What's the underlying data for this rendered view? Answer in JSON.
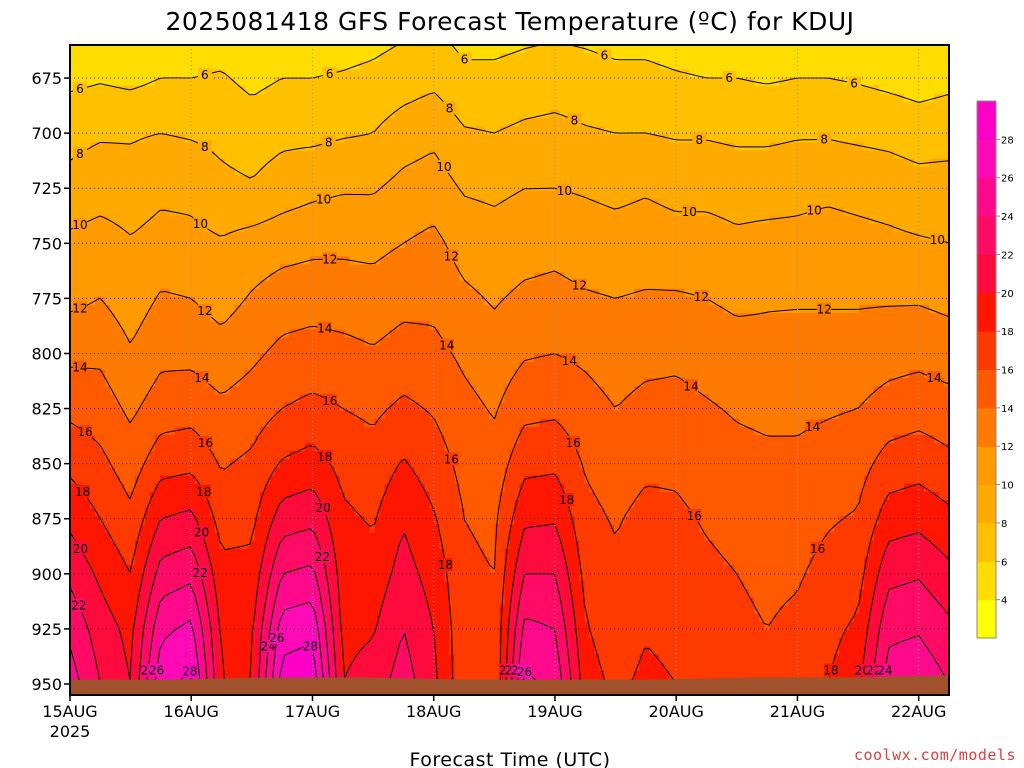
{
  "chart_data": {
    "type": "heatmap",
    "title": "2025081418 GFS Forecast Temperature (ºC) for KDUJ",
    "xlabel": "Forecast Time (UTC)",
    "ylabel": "",
    "credit": "coolwx.com/models",
    "x_ticks": [
      "15AUG",
      "16AUG",
      "17AUG",
      "18AUG",
      "19AUG",
      "20AUG",
      "21AUG",
      "22AUG"
    ],
    "x_tick_sub": "2025",
    "y_ticks": [
      675,
      700,
      725,
      750,
      775,
      800,
      825,
      850,
      875,
      900,
      925,
      950
    ],
    "ylim": [
      955,
      660
    ],
    "xlim_days": [
      15.0,
      22.25
    ],
    "grid": true,
    "colorbar": {
      "levels": [
        4,
        6,
        8,
        10,
        12,
        14,
        16,
        18,
        20,
        22,
        24,
        26,
        28
      ],
      "colors": [
        "#ffff00",
        "#ffdd00",
        "#ffc000",
        "#ffaa00",
        "#ff9a00",
        "#ff7a00",
        "#ff5a00",
        "#ff3a00",
        "#ff1600",
        "#ff0a3c",
        "#ff0a64",
        "#ff0a8c",
        "#ff0ab4",
        "#ff00c8"
      ]
    },
    "profiles": [
      {
        "day": 15.0,
        "temps": [
          5.5,
          7.5,
          8.5,
          10.5,
          11.5,
          13.5,
          15.5,
          17.5,
          19.5,
          21.5,
          23.5,
          25.0
        ]
      },
      {
        "day": 15.25,
        "temps": [
          5.8,
          7.8,
          9.0,
          11.0,
          12.0,
          13.6,
          15.0,
          16.5,
          18.0,
          19.6,
          21.0,
          22.0
        ]
      },
      {
        "day": 15.5,
        "temps": [
          5.5,
          7.8,
          8.8,
          10.2,
          11.0,
          12.2,
          13.6,
          15.0,
          16.5,
          18.0,
          19.4,
          20.0
        ]
      },
      {
        "day": 15.75,
        "temps": [
          6.0,
          8.0,
          9.5,
          10.8,
          12.2,
          13.5,
          15.0,
          17.2,
          20.0,
          22.8,
          25.5,
          27.5
        ]
      },
      {
        "day": 16.0,
        "temps": [
          6.0,
          7.8,
          9.4,
          10.6,
          12.0,
          13.5,
          15.2,
          17.5,
          20.5,
          23.5,
          26.5,
          28.5
        ]
      },
      {
        "day": 16.25,
        "temps": [
          6.2,
          7.5,
          8.5,
          10.2,
          11.2,
          12.8,
          14.4,
          15.8,
          17.2,
          18.6,
          19.6,
          20.0
        ]
      },
      {
        "day": 16.5,
        "temps": [
          5.5,
          7.0,
          8.2,
          10.8,
          12.2,
          13.6,
          15.0,
          16.4,
          17.5,
          18.6,
          19.6,
          20.0
        ]
      },
      {
        "day": 16.75,
        "temps": [
          6.0,
          7.5,
          9.0,
          11.2,
          13.0,
          14.5,
          16.0,
          18.2,
          21.0,
          24.0,
          27.0,
          29.0
        ]
      },
      {
        "day": 17.0,
        "temps": [
          6.0,
          7.5,
          9.5,
          11.5,
          13.2,
          14.8,
          16.5,
          18.8,
          21.5,
          24.5,
          27.5,
          29.5
        ]
      },
      {
        "day": 17.25,
        "temps": [
          6.2,
          7.8,
          9.8,
          11.6,
          13.0,
          14.6,
          16.0,
          17.4,
          18.4,
          19.0,
          19.4,
          20.0
        ]
      },
      {
        "day": 17.5,
        "temps": [
          6.5,
          8.0,
          9.8,
          11.5,
          12.8,
          14.2,
          15.6,
          16.8,
          17.8,
          18.8,
          19.8,
          21.0
        ]
      },
      {
        "day": 17.75,
        "temps": [
          7.0,
          9.0,
          10.6,
          12.0,
          13.4,
          14.8,
          16.4,
          18.2,
          19.8,
          20.8,
          22.0,
          23.0
        ]
      },
      {
        "day": 18.0,
        "temps": [
          7.5,
          9.5,
          11.0,
          12.5,
          13.4,
          14.6,
          15.8,
          17.0,
          18.2,
          19.2,
          20.0,
          20.5
        ]
      },
      {
        "day": 18.25,
        "temps": [
          6.5,
          8.2,
          9.8,
          11.2,
          12.4,
          13.6,
          14.6,
          15.4,
          16.0,
          16.4,
          16.6,
          16.5
        ]
      },
      {
        "day": 18.5,
        "temps": [
          6.5,
          8.0,
          9.6,
          10.8,
          11.8,
          12.8,
          13.8,
          14.8,
          15.6,
          16.0,
          16.2,
          16.0
        ]
      },
      {
        "day": 18.75,
        "temps": [
          6.8,
          8.4,
          10.0,
          11.2,
          12.4,
          13.8,
          15.4,
          17.4,
          19.6,
          22.0,
          24.5,
          26.5
        ]
      },
      {
        "day": 19.0,
        "temps": [
          7.0,
          8.6,
          10.0,
          11.4,
          12.6,
          14.0,
          15.6,
          17.6,
          19.8,
          22.0,
          24.0,
          25.5
        ]
      },
      {
        "day": 19.25,
        "temps": [
          6.8,
          8.2,
          9.8,
          11.0,
          12.2,
          13.6,
          14.8,
          15.8,
          16.6,
          17.4,
          18.2,
          19.0
        ]
      },
      {
        "day": 19.5,
        "temps": [
          6.5,
          8.0,
          9.5,
          10.8,
          12.0,
          13.0,
          14.0,
          15.0,
          15.8,
          16.4,
          16.8,
          17.5
        ]
      },
      {
        "day": 19.75,
        "temps": [
          6.5,
          8.0,
          9.8,
          11.0,
          12.2,
          13.4,
          14.6,
          15.6,
          16.6,
          17.2,
          17.8,
          18.5
        ]
      },
      {
        "day": 20.0,
        "temps": [
          6.2,
          7.8,
          9.4,
          10.8,
          12.2,
          13.6,
          14.6,
          15.6,
          16.4,
          17.0,
          17.4,
          18.0
        ]
      },
      {
        "day": 20.25,
        "temps": [
          6.0,
          7.8,
          9.4,
          10.8,
          12.0,
          13.2,
          14.2,
          15.0,
          15.8,
          16.4,
          16.8,
          17.0
        ]
      },
      {
        "day": 20.5,
        "temps": [
          6.0,
          7.6,
          9.2,
          10.4,
          11.6,
          12.8,
          13.8,
          14.6,
          15.4,
          16.0,
          16.4,
          16.5
        ]
      },
      {
        "day": 20.75,
        "temps": [
          5.8,
          7.6,
          9.2,
          10.6,
          11.8,
          12.6,
          13.6,
          14.4,
          15.0,
          15.6,
          16.0,
          16.5
        ]
      },
      {
        "day": 21.0,
        "temps": [
          6.0,
          7.8,
          9.4,
          10.6,
          11.8,
          12.8,
          13.6,
          14.4,
          15.2,
          15.8,
          16.4,
          17.0
        ]
      },
      {
        "day": 21.25,
        "temps": [
          6.0,
          7.8,
          9.6,
          10.8,
          11.8,
          12.8,
          13.8,
          14.8,
          15.8,
          16.6,
          17.4,
          18.0
        ]
      },
      {
        "day": 21.5,
        "temps": [
          5.8,
          7.6,
          9.4,
          10.6,
          11.8,
          12.8,
          14.0,
          15.2,
          16.2,
          17.2,
          18.4,
          19.5
        ]
      },
      {
        "day": 21.75,
        "temps": [
          5.5,
          7.4,
          9.2,
          10.4,
          11.8,
          13.2,
          14.8,
          16.8,
          19.0,
          21.4,
          23.5,
          25.0
        ]
      },
      {
        "day": 22.0,
        "temps": [
          5.2,
          7.0,
          8.8,
          10.2,
          11.8,
          13.4,
          15.2,
          17.2,
          19.4,
          21.8,
          23.8,
          25.5
        ]
      },
      {
        "day": 22.25,
        "temps": [
          5.5,
          7.2,
          8.8,
          10.0,
          11.5,
          13.0,
          14.8,
          16.5,
          18.5,
          20.5,
          22.5,
          24.0
        ]
      }
    ],
    "terrain": {
      "color": "#a0522d",
      "surface_hpa": [
        948,
        948,
        947,
        947,
        948,
        948,
        948,
        947,
        947,
        946
      ]
    }
  }
}
